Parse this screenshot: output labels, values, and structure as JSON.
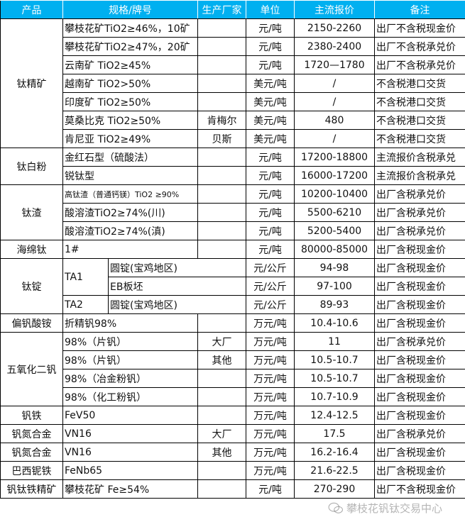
{
  "header_color": "#00b0f0",
  "headers": [
    "产品",
    "规格/牌号",
    "生产厂家",
    "单位",
    "主流报价",
    "备注"
  ],
  "groups": [
    {
      "product": "钛精矿",
      "rows": [
        {
          "spec": "攀枝花矿TiO2≥46%，10矿",
          "maker": "",
          "unit": "元/吨",
          "price": "2150-2260",
          "note": "出厂不含税现金价"
        },
        {
          "spec": "攀枝花矿TiO2≥47%，20矿",
          "maker": "",
          "unit": "元/吨",
          "price": "2380-2400",
          "note": "出厂不含税承兑价"
        },
        {
          "spec": "云南矿 TiO2≥45%",
          "maker": "",
          "unit": "元/吨",
          "price": "1720—1780",
          "note": "出厂不含税承兑价"
        },
        {
          "spec": "越南矿 TiO2>50%",
          "maker": "",
          "unit": "美元/吨",
          "price": "/",
          "note": "不含税港口交货"
        },
        {
          "spec": "印度矿 TiO2≥50%",
          "maker": "",
          "unit": "美元/吨",
          "price": "/",
          "note": "不含税港口交货"
        },
        {
          "spec": "莫桑比克 TiO2≥50%",
          "maker": "肯梅尔",
          "unit": "美元/吨",
          "price": "480",
          "note": "不含税港口交货"
        },
        {
          "spec": "肯尼亚 TiO2≥49%",
          "maker": "贝斯",
          "unit": "美元/吨",
          "price": "/",
          "note": "不含税港口交货"
        }
      ]
    },
    {
      "product": "钛白粉",
      "rows": [
        {
          "spec": "金红石型（硫酸法）",
          "maker": "",
          "unit": "元/吨",
          "price": "17200-18800",
          "note": "主流报价含税承兑"
        },
        {
          "spec": "锐钛型",
          "maker": "",
          "unit": "元/吨",
          "price": "16000-17200",
          "note": "主流报价含税承兑"
        }
      ]
    },
    {
      "product": "钛渣",
      "rows": [
        {
          "spec": "高钛渣（普通钙镁）TiO2 ≥90%",
          "maker": "",
          "unit": "元/吨",
          "price": "10200-10400",
          "note": "出厂含税承兑价"
        },
        {
          "spec": "酸溶渣TiO2≥74%(川)",
          "maker": "",
          "unit": "元/吨",
          "price": "5500-6210",
          "note": "出厂含税承兑价"
        },
        {
          "spec": "酸溶渣TiO2≥74%(滇)",
          "maker": "",
          "unit": "元/吨",
          "price": "5200-5400",
          "note": "出厂含税承兑价"
        }
      ]
    },
    {
      "product": "海绵钛",
      "rows": [
        {
          "spec": "1#",
          "maker": "",
          "unit": "元/吨",
          "price": "80000-85000",
          "note": "出厂含税现金价"
        }
      ]
    },
    {
      "product": "钛锭",
      "rows": [
        {
          "grade": "TA1",
          "form": "圆锭(宝鸡地区)",
          "unit": "元/公斤",
          "price": "94-98",
          "note": "出厂含税现金价"
        },
        {
          "grade": "TA1",
          "form": "EB板坯",
          "unit": "元/公斤",
          "price": "97-100",
          "note": "出厂含税现金价"
        },
        {
          "grade": "TA2",
          "form": "圆锭(宝鸡地区)",
          "unit": "元/公斤",
          "price": "89-93",
          "note": "出厂含税现金价"
        }
      ]
    },
    {
      "product": "偏钒酸铵",
      "rows": [
        {
          "spec": "折精钒98%",
          "maker": "",
          "unit": "万元/吨",
          "price": "10.4-10.6",
          "note": "出厂含税现金价"
        }
      ]
    },
    {
      "product": "五氧化二钒",
      "rows": [
        {
          "spec": "98%（片钒）",
          "maker": "大厂",
          "unit": "万元/吨",
          "price": "11",
          "note": "出厂含税承兑价"
        },
        {
          "spec": "98%（片钒）",
          "maker": "其他",
          "unit": "万元/吨",
          "price": "10.5-10.7",
          "note": "出厂含税现金价"
        },
        {
          "spec": "98%（冶金粉钒）",
          "maker": "",
          "unit": "万元/吨",
          "price": "10.5-10.7",
          "note": "出厂含税现金价"
        },
        {
          "spec": "98%（化工粉钒）",
          "maker": "",
          "unit": "万元/吨",
          "price": "10.7-10.9",
          "note": "出厂含税现金价"
        }
      ]
    },
    {
      "product": "钒铁",
      "rows": [
        {
          "spec": "FeV50",
          "maker": "",
          "unit": "万元/吨",
          "price": "12.4-12.5",
          "note": "出厂含税现金价"
        }
      ]
    },
    {
      "product": "钒氮合金",
      "rows": [
        {
          "spec": "VN16",
          "maker": "大厂",
          "unit": "万元/吨",
          "price": "17.5",
          "note": "出厂含税承兑价"
        }
      ]
    },
    {
      "product": "钒氮合金",
      "rows": [
        {
          "spec": "VN16",
          "maker": "其他",
          "unit": "万元/吨",
          "price": "16.2-16.4",
          "note": "出厂含税现金价"
        }
      ]
    },
    {
      "product": "巴西铌铁",
      "rows": [
        {
          "spec": "FeNb65",
          "maker": "",
          "unit": "万元/吨",
          "price": "21.6-22.5",
          "note": "出厂含税现金价"
        }
      ]
    },
    {
      "product": "钒钛铁精矿",
      "rows": [
        {
          "spec": "攀枝花矿 Fe≥54%",
          "maker": "",
          "unit": "元/吨",
          "price": "270-290",
          "note": "出厂不含税现金价"
        }
      ]
    }
  ],
  "watermark": {
    "text": "攀枝花钒钛交易中心",
    "icon": "wechat-icon"
  }
}
